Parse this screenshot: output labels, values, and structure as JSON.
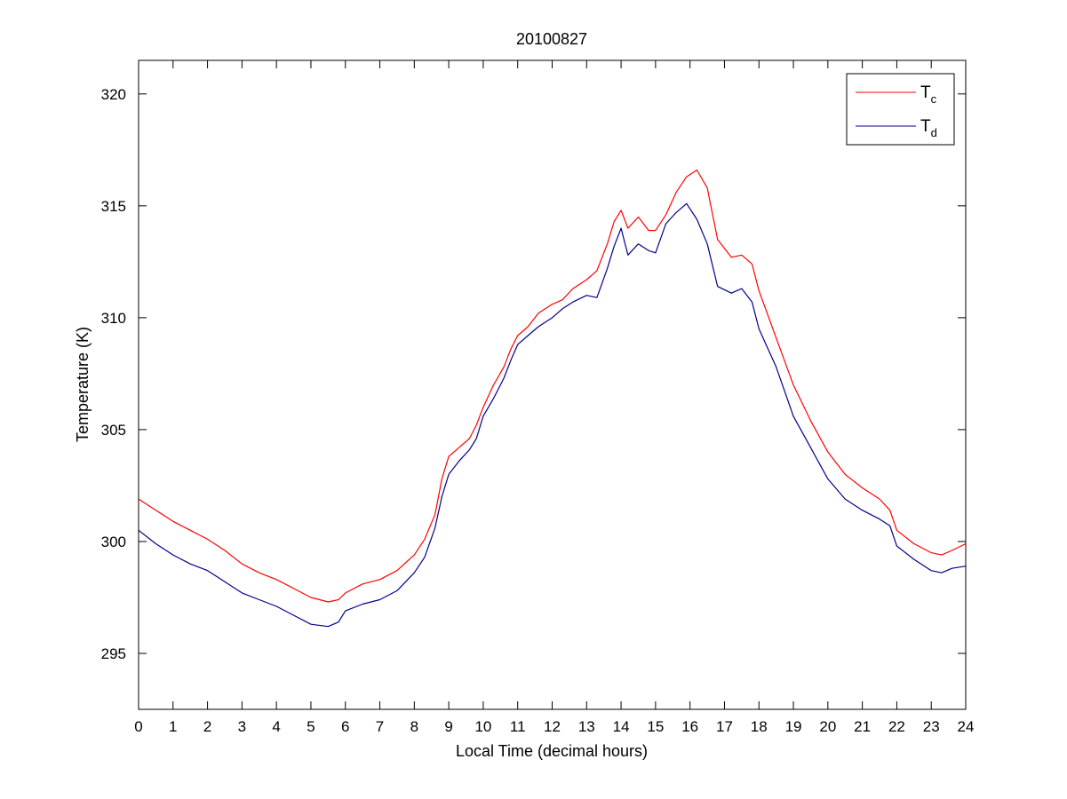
{
  "chart_data": {
    "type": "line",
    "title": "20100827",
    "xlabel": "Local Time (decimal hours)",
    "ylabel": "Temperature (K)",
    "xlim": [
      0,
      24
    ],
    "ylim": [
      292.5,
      321.5
    ],
    "xticks": [
      0,
      1,
      2,
      3,
      4,
      5,
      6,
      7,
      8,
      9,
      10,
      11,
      12,
      13,
      14,
      15,
      16,
      17,
      18,
      19,
      20,
      21,
      22,
      23,
      24
    ],
    "yticks": [
      295,
      300,
      305,
      310,
      315,
      320
    ],
    "grid": false,
    "legend_position": "top-right",
    "series": [
      {
        "name": "T",
        "name_subscript": "c",
        "color": "#ff0000",
        "x": [
          0,
          0.5,
          1,
          1.5,
          2,
          2.5,
          3,
          3.5,
          4,
          4.5,
          5,
          5.5,
          5.8,
          6,
          6.5,
          7,
          7.5,
          8,
          8.3,
          8.6,
          8.8,
          9,
          9.3,
          9.6,
          9.8,
          10,
          10.3,
          10.6,
          10.8,
          11,
          11.3,
          11.6,
          12,
          12.3,
          12.6,
          13,
          13.3,
          13.6,
          13.8,
          14,
          14.2,
          14.5,
          14.8,
          15,
          15.3,
          15.6,
          15.9,
          16.2,
          16.5,
          16.8,
          17.2,
          17.5,
          17.8,
          18,
          18.5,
          19,
          19.5,
          20,
          20.5,
          21,
          21.5,
          21.8,
          22,
          22.5,
          23,
          23.3,
          23.6,
          24
        ],
        "y": [
          301.9,
          301.4,
          300.9,
          300.5,
          300.1,
          299.6,
          299.0,
          298.6,
          298.3,
          297.9,
          297.5,
          297.3,
          297.4,
          297.7,
          298.1,
          298.3,
          298.7,
          299.4,
          300.1,
          301.2,
          302.8,
          303.8,
          304.2,
          304.6,
          305.2,
          306.0,
          307.0,
          307.8,
          308.6,
          309.2,
          309.6,
          310.2,
          310.6,
          310.8,
          311.3,
          311.7,
          312.1,
          313.3,
          314.3,
          314.8,
          314.0,
          314.5,
          313.9,
          313.9,
          314.6,
          315.6,
          316.3,
          316.6,
          315.8,
          313.5,
          312.7,
          312.8,
          312.4,
          311.2,
          309.1,
          307.0,
          305.4,
          304.0,
          303.0,
          302.4,
          301.9,
          301.4,
          300.5,
          299.9,
          299.5,
          299.4,
          299.6,
          299.9
        ]
      },
      {
        "name": "T",
        "name_subscript": "d",
        "color": "#00008b",
        "x": [
          0,
          0.5,
          1,
          1.5,
          2,
          2.5,
          3,
          3.5,
          4,
          4.5,
          5,
          5.5,
          5.8,
          6,
          6.5,
          7,
          7.5,
          8,
          8.3,
          8.6,
          8.8,
          9,
          9.3,
          9.6,
          9.8,
          10,
          10.3,
          10.6,
          10.8,
          11,
          11.3,
          11.6,
          12,
          12.3,
          12.6,
          13,
          13.3,
          13.6,
          13.8,
          14,
          14.2,
          14.5,
          14.8,
          15,
          15.3,
          15.6,
          15.9,
          16.2,
          16.5,
          16.8,
          17.2,
          17.5,
          17.8,
          18,
          18.5,
          19,
          19.5,
          20,
          20.5,
          21,
          21.5,
          21.8,
          22,
          22.5,
          23,
          23.3,
          23.6,
          24
        ],
        "y": [
          300.5,
          299.9,
          299.4,
          299.0,
          298.7,
          298.2,
          297.7,
          297.4,
          297.1,
          296.7,
          296.3,
          296.2,
          296.4,
          296.9,
          297.2,
          297.4,
          297.8,
          298.6,
          299.3,
          300.6,
          302.0,
          303.0,
          303.6,
          304.1,
          304.6,
          305.6,
          306.4,
          307.3,
          308.1,
          308.8,
          309.2,
          309.6,
          310.0,
          310.4,
          310.7,
          311.0,
          310.9,
          312.2,
          313.2,
          314.0,
          312.8,
          313.3,
          313.0,
          312.9,
          314.2,
          314.7,
          315.1,
          314.4,
          313.3,
          311.4,
          311.1,
          311.3,
          310.7,
          309.5,
          307.8,
          305.6,
          304.2,
          302.8,
          301.9,
          301.4,
          301.0,
          300.7,
          299.8,
          299.2,
          298.7,
          298.6,
          298.8,
          298.9
        ]
      }
    ]
  }
}
